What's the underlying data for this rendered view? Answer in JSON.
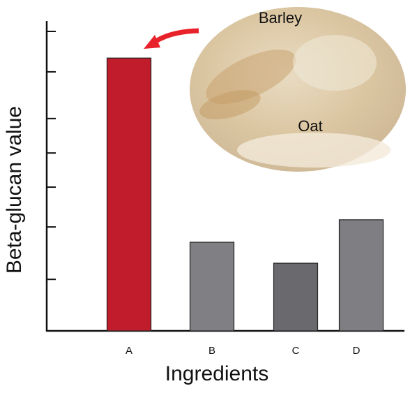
{
  "chart_data": {
    "type": "bar",
    "x_label": "Ingredients",
    "y_label": "Beta-glucan value",
    "categories": [
      "A",
      "B",
      "C",
      "D"
    ],
    "values": [
      91.1,
      29.6,
      22.6,
      37.1
    ],
    "colors": [
      "#c01c2c",
      "#808084",
      "#6a6a6e",
      "#7f7f83"
    ],
    "ylim": [
      0,
      100
    ],
    "yticks": [
      17.2,
      34.7,
      48.0,
      59.4,
      70.9,
      86.5,
      100
    ],
    "annotations": [
      "Barley",
      "Oat"
    ]
  }
}
